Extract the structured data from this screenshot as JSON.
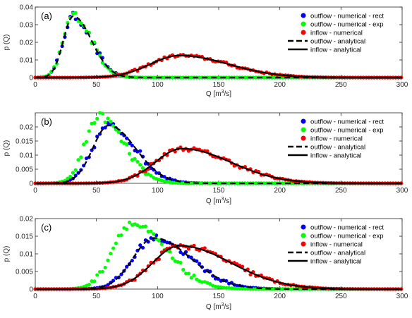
{
  "chart_data": [
    {
      "type": "scatter",
      "panel_label": "(a)",
      "xlabel": "Q [m³/s]",
      "ylabel": "p (Q)",
      "xlim": [
        0,
        300
      ],
      "ylim": [
        0,
        0.04
      ],
      "xticks": [
        0,
        50,
        100,
        150,
        200,
        250,
        300
      ],
      "yticks": [
        0,
        0.01,
        0.02,
        0.03,
        0.04
      ],
      "ytick_labels": [
        "0",
        "0.01",
        "0.02",
        "0.03",
        "0.04"
      ],
      "grid": false,
      "legend_position": "top-right",
      "legend": [
        {
          "label": "outflow - numerical - rect",
          "kind": "dot",
          "color": "#0000ff"
        },
        {
          "label": "outflow - numerical - exp",
          "kind": "dot",
          "color": "#00ff00"
        },
        {
          "label": "inflow - numerical",
          "kind": "dot",
          "color": "#ff0000"
        },
        {
          "label": "outflow - analytical",
          "kind": "dash",
          "color": "#000000"
        },
        {
          "label": "inflow - analytical",
          "kind": "solid",
          "color": "#000000"
        }
      ],
      "inflow": {
        "peak_x": 118,
        "peak_y": 0.0125,
        "sigma_left": 24,
        "sigma_right": 40
      },
      "outflow": {
        "peak_x": 31,
        "peak_y": 0.0348,
        "sigma_left": 8,
        "sigma_right": 15
      },
      "outflow_exp": {
        "peak_x": 31,
        "peak_y": 0.0355,
        "sigma_left": 8,
        "sigma_right": 15
      }
    },
    {
      "type": "scatter",
      "panel_label": "(b)",
      "xlabel": "Q [m³/s]",
      "ylabel": "p (Q)",
      "xlim": [
        0,
        300
      ],
      "ylim": [
        0,
        0.025
      ],
      "xticks": [
        0,
        50,
        100,
        150,
        200,
        250,
        300
      ],
      "yticks": [
        0,
        0.005,
        0.01,
        0.015,
        0.02
      ],
      "ytick_labels": [
        "0",
        "0.005",
        "0.01",
        "0.015",
        "0.02"
      ],
      "grid": false,
      "legend_position": "top-right",
      "legend": [
        {
          "label": "outflow - numerical - rect",
          "kind": "dot",
          "color": "#0000ff"
        },
        {
          "label": "outflow - numerical - exp",
          "kind": "dot",
          "color": "#00ff00"
        },
        {
          "label": "inflow - numerical",
          "kind": "dot",
          "color": "#ff0000"
        },
        {
          "label": "outflow - analytical",
          "kind": "dash",
          "color": "#000000"
        },
        {
          "label": "inflow - analytical",
          "kind": "solid",
          "color": "#000000"
        }
      ],
      "inflow": {
        "peak_x": 120,
        "peak_y": 0.0123,
        "sigma_left": 22,
        "sigma_right": 40
      },
      "outflow": {
        "peak_x": 60,
        "peak_y": 0.0205,
        "sigma_left": 13,
        "sigma_right": 22
      },
      "outflow_exp": {
        "peak_x": 52,
        "peak_y": 0.0238,
        "sigma_left": 11,
        "sigma_right": 20
      }
    },
    {
      "type": "scatter",
      "panel_label": "(c)",
      "xlabel": "Q [m³/s]",
      "ylabel": "p (Q)",
      "xlim": [
        0,
        300
      ],
      "ylim": [
        0,
        0.02
      ],
      "xticks": [
        0,
        50,
        100,
        150,
        200,
        250,
        300
      ],
      "yticks": [
        0,
        0.005,
        0.01,
        0.015,
        0.02
      ],
      "ytick_labels": [
        "0",
        "0.005",
        "0.01",
        "0.015",
        "0.02"
      ],
      "grid": false,
      "legend_position": "top-right",
      "legend": [
        {
          "label": "outflow - numerical - rect",
          "kind": "dot",
          "color": "#0000ff"
        },
        {
          "label": "outflow - numerical - exp",
          "kind": "dot",
          "color": "#00ff00"
        },
        {
          "label": "inflow - numerical",
          "kind": "dot",
          "color": "#ff0000"
        },
        {
          "label": "outflow - analytical",
          "kind": "dash",
          "color": "#000000"
        },
        {
          "label": "inflow - analytical",
          "kind": "solid",
          "color": "#000000"
        }
      ],
      "inflow": {
        "peak_x": 118,
        "peak_y": 0.0123,
        "sigma_left": 22,
        "sigma_right": 42
      },
      "outflow": {
        "peak_x": 97,
        "peak_y": 0.0145,
        "sigma_left": 17,
        "sigma_right": 30
      },
      "outflow_exp": {
        "peak_x": 78,
        "peak_y": 0.0185,
        "sigma_left": 15,
        "sigma_right": 28
      }
    }
  ]
}
